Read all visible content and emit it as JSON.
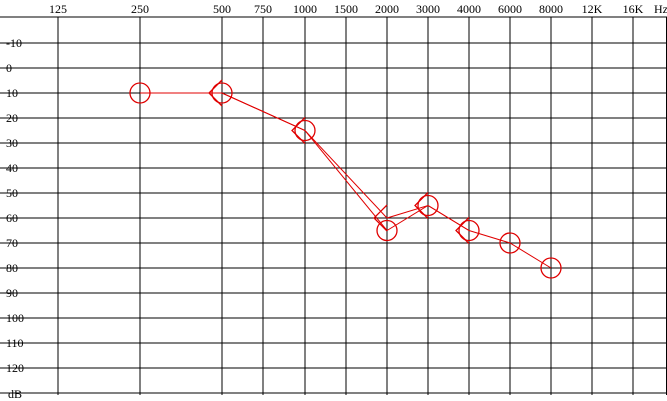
{
  "chart_data": {
    "type": "line",
    "x_tick_labels": [
      "125",
      "250",
      "500",
      "750",
      "1000",
      "1500",
      "2000",
      "3000",
      "4000",
      "6000",
      "8000",
      "12K",
      "16K"
    ],
    "x_unit_label": "Hz",
    "y_tick_labels": [
      "-10",
      "0",
      "10",
      "20",
      "30",
      "40",
      "50",
      "60",
      "70",
      "80",
      "90",
      "100",
      "110",
      "120"
    ],
    "y_unit_label": "dB",
    "ylim": [
      -10,
      130
    ],
    "y_inverted": true,
    "grid": true,
    "series": [
      {
        "marker": "circle",
        "x": [
          250,
          500,
          1000,
          2000,
          3000,
          4000,
          6000,
          8000
        ],
        "y": [
          10,
          10,
          25,
          65,
          55,
          65,
          70,
          80
        ]
      },
      {
        "marker": "bracket",
        "x": [
          500,
          1000,
          2000,
          3000,
          4000
        ],
        "y": [
          10,
          25,
          60,
          55,
          65
        ]
      }
    ],
    "colors": {
      "series": "#e00000",
      "grid": "#000000"
    }
  }
}
